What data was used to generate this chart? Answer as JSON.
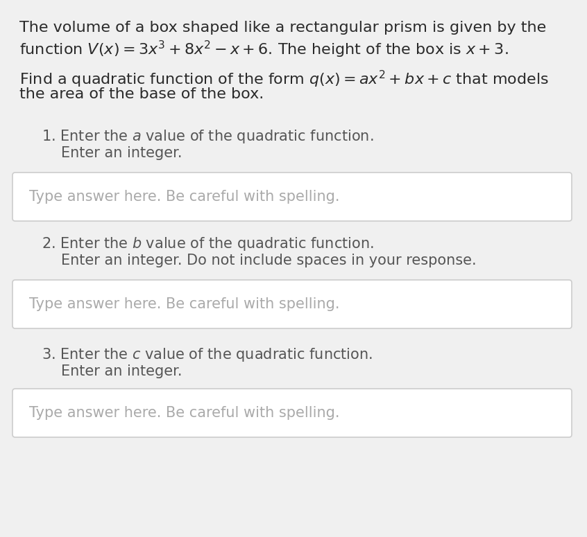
{
  "bg_color": "#f0f0f0",
  "text_color_dark": "#2a2a2a",
  "text_color_gray": "#555555",
  "text_color_placeholder": "#aaaaaa",
  "box_border_color": "#cccccc",
  "box_bg_color": "#ffffff",
  "line1": "The volume of a box shaped like a rectangular prism is given by the",
  "line2": "function $V(x) = 3x^3 + 8x^2 - x + 6$. The height of the box is $x + 3$.",
  "line3": "Find a quadratic function of the form $q(x) = ax^2 + bx + c$ that models",
  "line4": "the area of the base of the box.",
  "q1_label": "1. Enter the $a$ value of the quadratic function.",
  "q1_sub": "Enter an integer.",
  "q2_label": "2. Enter the $b$ value of the quadratic function.",
  "q2_sub": "Enter an integer. Do not include spaces in your response.",
  "q3_label": "3. Enter the $c$ value of the quadratic function.",
  "q3_sub": "Enter an integer.",
  "placeholder": "Type answer here. Be careful with spelling.",
  "font_size_body": 16,
  "font_size_question": 15,
  "font_size_placeholder": 15
}
